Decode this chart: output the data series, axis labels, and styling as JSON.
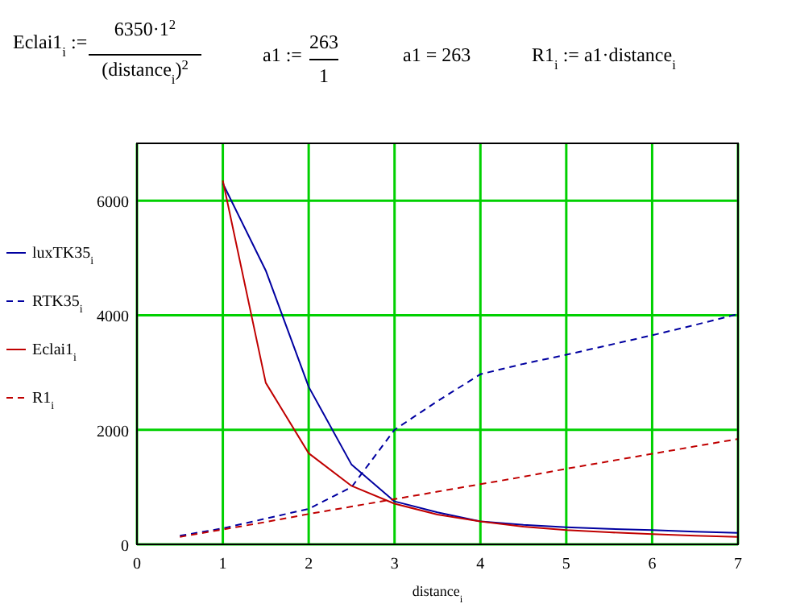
{
  "chart_data": {
    "type": "line",
    "xlabel": "distance$_{i}$",
    "annotations": [
      "Eclai1$_{i}$ :=",
      "6350·1$^{2}$",
      "(distance$_{i}$)$^{2}$",
      "a1 :=",
      "263",
      "1",
      "a1 = 263",
      "R1$_{i}$ := a1·distance$_{i}$"
    ],
    "series": [
      {
        "name": "luxTK35$_{i}$",
        "color": "#0000a0",
        "line_style": "solid",
        "x": [
          1,
          1.5,
          2,
          2.5,
          3,
          3.5,
          4,
          4.5,
          5,
          5.5,
          6,
          6.5,
          7
        ],
        "values": [
          6300,
          4780,
          2750,
          1390,
          750,
          560,
          400,
          340,
          300,
          270,
          250,
          220,
          200
        ]
      },
      {
        "name": "RTK35$_{i}$",
        "color": "#0000a0",
        "line_style": "dashed",
        "x": [
          0.5,
          1,
          1.5,
          2,
          2.5,
          3,
          3.5,
          4,
          4.5,
          5,
          5.5,
          6,
          6.5,
          7
        ],
        "values": [
          150,
          280,
          450,
          620,
          1000,
          2000,
          2500,
          2970,
          3150,
          3310,
          3480,
          3650,
          3830,
          4020
        ]
      },
      {
        "name": "Eclai1$_{i}$",
        "color": "#c00000",
        "line_style": "solid",
        "x": [
          1,
          1.5,
          2,
          2.5,
          3,
          3.5,
          4,
          4.5,
          5,
          5.5,
          6,
          6.5,
          7
        ],
        "values": [
          6350,
          2820,
          1590,
          1020,
          710,
          520,
          400,
          310,
          250,
          210,
          180,
          150,
          130
        ]
      },
      {
        "name": "R1$_{i}$",
        "color": "#c00000",
        "line_style": "dashed",
        "x": [
          0.5,
          1,
          1.5,
          2,
          2.5,
          3,
          3.5,
          4,
          4.5,
          5,
          5.5,
          6,
          6.5,
          7
        ],
        "values": [
          130,
          260,
          390,
          530,
          660,
          790,
          920,
          1050,
          1180,
          1320,
          1450,
          1580,
          1710,
          1840
        ]
      }
    ],
    "xlim": [
      0,
      7
    ],
    "xticks": [
      0,
      1,
      2,
      3,
      4,
      5,
      6,
      7
    ],
    "ylim": [
      0,
      7000
    ],
    "yticks": [
      0,
      2000,
      4000,
      6000
    ],
    "grid": true,
    "legend": "left"
  }
}
